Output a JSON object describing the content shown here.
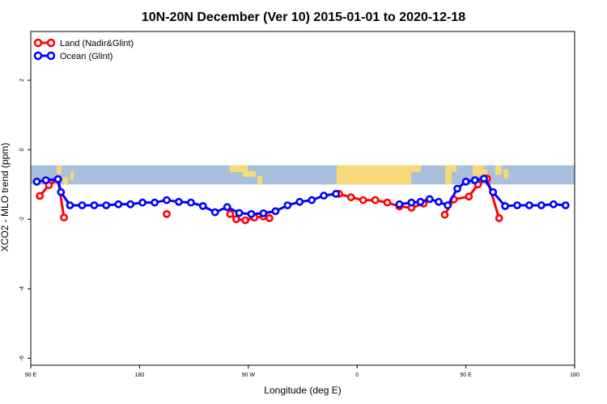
{
  "chart_data": {
    "type": "line",
    "title": "10N-20N December (Ver 10)   2015-01-01 to 2020-12-18",
    "xlabel": "Longitude (deg E)",
    "ylabel": "XCO2 - MLO trend (ppm)",
    "xlim": [
      90,
      540
    ],
    "ylim": [
      -6.2,
      3.4
    ],
    "x_ticks": [
      {
        "value": 90,
        "label": "90 E"
      },
      {
        "value": 180,
        "label": "180"
      },
      {
        "value": 270,
        "label": "90 W"
      },
      {
        "value": 360,
        "label": "0"
      },
      {
        "value": 450,
        "label": "90 E"
      },
      {
        "value": 540,
        "label": "180"
      }
    ],
    "y_ticks": [
      {
        "value": 2,
        "label": "2"
      },
      {
        "value": 0,
        "label": "0"
      },
      {
        "value": -2,
        "label": "-2"
      },
      {
        "value": -4,
        "label": "-4"
      },
      {
        "value": -6,
        "label": "-6"
      }
    ],
    "map_band": {
      "y_top": -0.45,
      "y_bottom": -1.0,
      "ocean_color": "#a8c0dc",
      "land_color": "#f7d97a"
    },
    "legend": {
      "position": "top-left"
    },
    "series": [
      {
        "name": "Land (Nadir&Glint)",
        "color": "#ff0000",
        "segments": [
          [
            [
              97.5,
              -1.33
            ],
            [
              105,
              -1.02
            ],
            [
              112.5,
              -0.85
            ],
            [
              117.5,
              -1.95
            ]
          ],
          [
            [
              202.5,
              -1.85
            ]
          ],
          [
            [
              255,
              -1.85
            ],
            [
              260,
              -2.0
            ],
            [
              267.5,
              -2.03
            ],
            [
              275,
              -1.95
            ],
            [
              282.5,
              -1.92
            ],
            [
              287.5,
              -1.97
            ]
          ],
          [
            [
              345,
              -1.27
            ],
            [
              355,
              -1.37
            ],
            [
              365,
              -1.45
            ],
            [
              375,
              -1.45
            ],
            [
              385,
              -1.52
            ],
            [
              395,
              -1.63
            ],
            [
              405,
              -1.67
            ],
            [
              415,
              -1.55
            ]
          ],
          [
            [
              432.5,
              -1.87
            ],
            [
              440,
              -1.43
            ],
            [
              452.5,
              -1.35
            ],
            [
              460,
              -1.0
            ],
            [
              467.5,
              -0.83
            ],
            [
              477.5,
              -1.97
            ]
          ]
        ]
      },
      {
        "name": "Ocean (Glint)",
        "color": "#0000ff",
        "segments": [
          [
            [
              95,
              -0.92
            ],
            [
              102.5,
              -0.88
            ],
            [
              112.5,
              -0.85
            ],
            [
              115,
              -1.22
            ],
            [
              122.5,
              -1.6
            ],
            [
              132.5,
              -1.6
            ],
            [
              142.5,
              -1.6
            ],
            [
              152.5,
              -1.6
            ],
            [
              162.5,
              -1.57
            ],
            [
              172.5,
              -1.57
            ],
            [
              182.5,
              -1.52
            ],
            [
              192.5,
              -1.52
            ],
            [
              202.5,
              -1.45
            ],
            [
              212.5,
              -1.5
            ],
            [
              222.5,
              -1.52
            ],
            [
              232.5,
              -1.62
            ],
            [
              242.5,
              -1.8
            ],
            [
              252.5,
              -1.65
            ],
            [
              262.5,
              -1.82
            ],
            [
              272.5,
              -1.85
            ],
            [
              282.5,
              -1.83
            ],
            [
              292.5,
              -1.77
            ],
            [
              302.5,
              -1.6
            ],
            [
              312.5,
              -1.5
            ],
            [
              322.5,
              -1.45
            ],
            [
              332.5,
              -1.32
            ],
            [
              342.5,
              -1.27
            ]
          ],
          [
            [
              395,
              -1.57
            ],
            [
              405,
              -1.52
            ],
            [
              412.5,
              -1.5
            ],
            [
              420,
              -1.42
            ],
            [
              427.5,
              -1.5
            ],
            [
              435,
              -1.6
            ],
            [
              443,
              -1.12
            ],
            [
              450,
              -0.92
            ],
            [
              457.5,
              -0.88
            ],
            [
              465,
              -0.83
            ],
            [
              472.5,
              -1.22
            ],
            [
              482.5,
              -1.62
            ],
            [
              492.5,
              -1.6
            ],
            [
              502.5,
              -1.6
            ],
            [
              512.5,
              -1.6
            ],
            [
              522.5,
              -1.57
            ],
            [
              532.5,
              -1.6
            ]
          ]
        ]
      }
    ]
  }
}
